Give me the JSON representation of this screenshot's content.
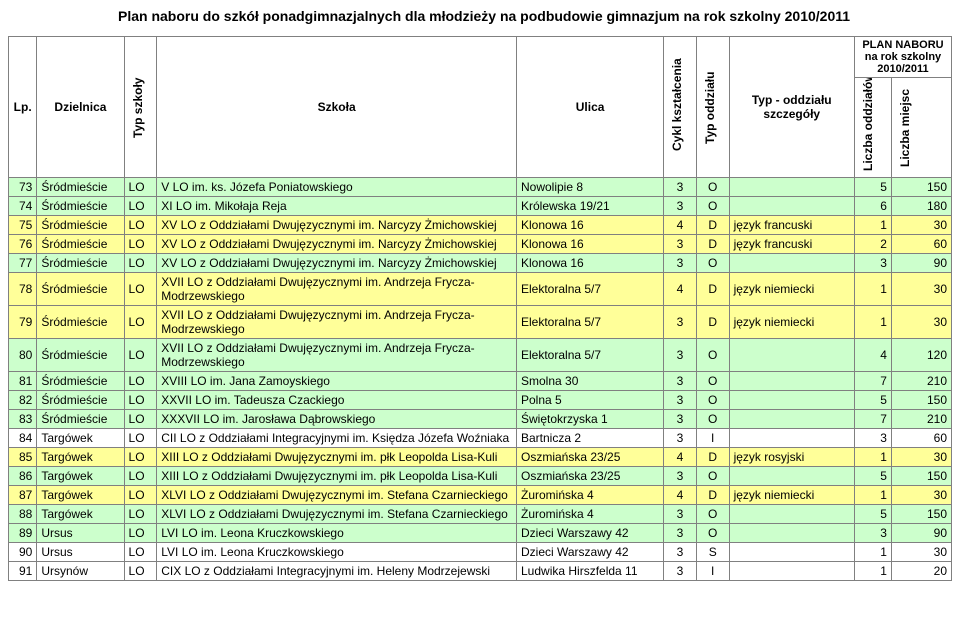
{
  "title": "Plan naboru do szkół ponadgimnazjalnych dla młodzieży na podbudowie gimnazjum na rok szkolny 2010/2011",
  "headers": {
    "lp": "Lp.",
    "dzielnica": "Dzielnica",
    "typ_szkoly": "Typ szkoły",
    "szkola": "Szkoła",
    "ulica": "Ulica",
    "cykl": "Cykl kształcenia",
    "typ_oddzialu": "Typ oddziału",
    "typ_oddzialu_szcz": "Typ - oddziału szczegóły",
    "plan_naboru": "PLAN NABORU na rok szkolny 2010/2011",
    "liczba_oddzialow": "Liczba oddziałów",
    "liczba_miejsc": "Liczba miejsc"
  },
  "rows": [
    {
      "lp": "73",
      "dz": "Śródmieście",
      "typ": "LO",
      "szk": "V LO im. ks. Józefa Poniatowskiego",
      "ul": "Nowolipie 8",
      "cykl": "3",
      "to": "O",
      "tos": "",
      "lod": "5",
      "lmi": "150",
      "cls": "green"
    },
    {
      "lp": "74",
      "dz": "Śródmieście",
      "typ": "LO",
      "szk": "XI LO im. Mikołaja Reja",
      "ul": "Królewska 19/21",
      "cykl": "3",
      "to": "O",
      "tos": "",
      "lod": "6",
      "lmi": "180",
      "cls": "green"
    },
    {
      "lp": "75",
      "dz": "Śródmieście",
      "typ": "LO",
      "szk": "XV LO z Oddziałami Dwujęzycznymi im. Narcyzy Żmichowskiej",
      "ul": "Klonowa 16",
      "cykl": "4",
      "to": "D",
      "tos": "język francuski",
      "lod": "1",
      "lmi": "30",
      "cls": "yellow"
    },
    {
      "lp": "76",
      "dz": "Śródmieście",
      "typ": "LO",
      "szk": "XV LO z Oddziałami Dwujęzycznymi im. Narcyzy Żmichowskiej",
      "ul": "Klonowa 16",
      "cykl": "3",
      "to": "D",
      "tos": "język francuski",
      "lod": "2",
      "lmi": "60",
      "cls": "yellow"
    },
    {
      "lp": "77",
      "dz": "Śródmieście",
      "typ": "LO",
      "szk": "XV LO z Oddziałami Dwujęzycznymi im. Narcyzy Żmichowskiej",
      "ul": "Klonowa 16",
      "cykl": "3",
      "to": "O",
      "tos": "",
      "lod": "3",
      "lmi": "90",
      "cls": "green"
    },
    {
      "lp": "78",
      "dz": "Śródmieście",
      "typ": "LO",
      "szk": "XVII LO z Oddziałami Dwujęzycznymi im. Andrzeja Frycza-Modrzewskiego",
      "ul": "Elektoralna 5/7",
      "cykl": "4",
      "to": "D",
      "tos": "język niemiecki",
      "lod": "1",
      "lmi": "30",
      "cls": "yellow"
    },
    {
      "lp": "79",
      "dz": "Śródmieście",
      "typ": "LO",
      "szk": "XVII LO z Oddziałami Dwujęzycznymi im. Andrzeja Frycza-Modrzewskiego",
      "ul": "Elektoralna 5/7",
      "cykl": "3",
      "to": "D",
      "tos": "język niemiecki",
      "lod": "1",
      "lmi": "30",
      "cls": "yellow"
    },
    {
      "lp": "80",
      "dz": "Śródmieście",
      "typ": "LO",
      "szk": "XVII LO z Oddziałami Dwujęzycznymi im. Andrzeja Frycza-Modrzewskiego",
      "ul": "Elektoralna 5/7",
      "cykl": "3",
      "to": "O",
      "tos": "",
      "lod": "4",
      "lmi": "120",
      "cls": "green"
    },
    {
      "lp": "81",
      "dz": "Śródmieście",
      "typ": "LO",
      "szk": "XVIII LO im. Jana Zamoyskiego",
      "ul": "Smolna 30",
      "cykl": "3",
      "to": "O",
      "tos": "",
      "lod": "7",
      "lmi": "210",
      "cls": "green"
    },
    {
      "lp": "82",
      "dz": "Śródmieście",
      "typ": "LO",
      "szk": "XXVII LO im. Tadeusza Czackiego",
      "ul": "Polna 5",
      "cykl": "3",
      "to": "O",
      "tos": "",
      "lod": "5",
      "lmi": "150",
      "cls": "green"
    },
    {
      "lp": "83",
      "dz": "Śródmieście",
      "typ": "LO",
      "szk": "XXXVII LO im. Jarosława Dąbrowskiego",
      "ul": "Świętokrzyska 1",
      "cykl": "3",
      "to": "O",
      "tos": "",
      "lod": "7",
      "lmi": "210",
      "cls": "green"
    },
    {
      "lp": "84",
      "dz": "Targówek",
      "typ": "LO",
      "szk": "CII LO z Oddziałami Integracyjnymi im. Księdza Józefa Woźniaka",
      "ul": "Bartnicza 2",
      "cykl": "3",
      "to": "I",
      "tos": "",
      "lod": "3",
      "lmi": "60",
      "cls": "white"
    },
    {
      "lp": "85",
      "dz": "Targówek",
      "typ": "LO",
      "szk": "XIII LO z Oddziałami Dwujęzycznymi im. płk Leopolda Lisa-Kuli",
      "ul": "Oszmiańska 23/25",
      "cykl": "4",
      "to": "D",
      "tos": "język rosyjski",
      "lod": "1",
      "lmi": "30",
      "cls": "yellow"
    },
    {
      "lp": "86",
      "dz": "Targówek",
      "typ": "LO",
      "szk": "XIII LO z Oddziałami Dwujęzycznymi im. płk Leopolda Lisa-Kuli",
      "ul": "Oszmiańska 23/25",
      "cykl": "3",
      "to": "O",
      "tos": "",
      "lod": "5",
      "lmi": "150",
      "cls": "green"
    },
    {
      "lp": "87",
      "dz": "Targówek",
      "typ": "LO",
      "szk": "XLVI LO z Oddziałami Dwujęzycznymi im. Stefana Czarnieckiego",
      "ul": "Żuromińska 4",
      "cykl": "4",
      "to": "D",
      "tos": "język niemiecki",
      "lod": "1",
      "lmi": "30",
      "cls": "yellow"
    },
    {
      "lp": "88",
      "dz": "Targówek",
      "typ": "LO",
      "szk": "XLVI LO z Oddziałami Dwujęzycznymi im. Stefana Czarnieckiego",
      "ul": "Żuromińska 4",
      "cykl": "3",
      "to": "O",
      "tos": "",
      "lod": "5",
      "lmi": "150",
      "cls": "green"
    },
    {
      "lp": "89",
      "dz": "Ursus",
      "typ": "LO",
      "szk": "LVI LO im. Leona Kruczkowskiego",
      "ul": "Dzieci Warszawy 42",
      "cykl": "3",
      "to": "O",
      "tos": "",
      "lod": "3",
      "lmi": "90",
      "cls": "green"
    },
    {
      "lp": "90",
      "dz": "Ursus",
      "typ": "LO",
      "szk": "LVI LO im. Leona Kruczkowskiego",
      "ul": "Dzieci Warszawy 42",
      "cykl": "3",
      "to": "S",
      "tos": "",
      "lod": "1",
      "lmi": "30",
      "cls": "white"
    },
    {
      "lp": "91",
      "dz": "Ursynów",
      "typ": "LO",
      "szk": "CIX LO z Oddziałami Integracyjnymi im. Heleny Modrzejewski",
      "ul": "Ludwika Hirszfelda 11",
      "cykl": "3",
      "to": "I",
      "tos": "",
      "lod": "1",
      "lmi": "20",
      "cls": "white"
    }
  ],
  "colors": {
    "green": "#ccffcc",
    "yellow": "#ffff99",
    "white": "#ffffff",
    "border": "#808080"
  }
}
